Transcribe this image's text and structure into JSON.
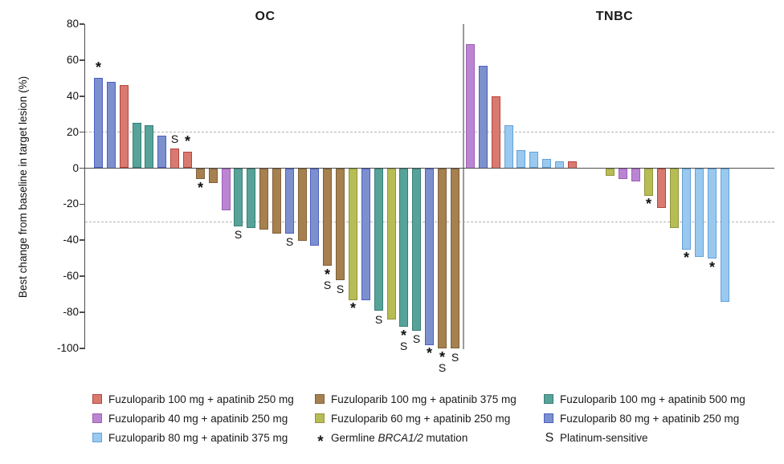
{
  "figure": {
    "ylabel": "Best change from baseline in target lesion (%)"
  },
  "chart_data": {
    "type": "bar",
    "subtype": "waterfall",
    "ylabel": "Best change from baseline in target lesion (%)",
    "ylim": [
      -100,
      80
    ],
    "yticks": [
      80,
      60,
      40,
      20,
      0,
      -20,
      -40,
      -60,
      -80,
      -100
    ],
    "reference_lines": [
      20,
      -30
    ],
    "grid": false,
    "legend_position": "bottom",
    "groups": {
      "fz100_ap250": {
        "label": "Fuzuloparib 100 mg + apatinib 250 mg",
        "fill": "#d97a70",
        "border": "#b5443c"
      },
      "fz100_ap375": {
        "label": "Fuzuloparib 100 mg + apatinib 375 mg",
        "fill": "#a6804e",
        "border": "#7f613a"
      },
      "fz100_ap500": {
        "label": "Fuzuloparib 100 mg + apatinib 500 mg",
        "fill": "#57a39a",
        "border": "#377e75"
      },
      "fz40_ap250": {
        "label": "Fuzuloparib 40 mg + apatinib 250 mg",
        "fill": "#bb85d3",
        "border": "#9c5fb5"
      },
      "fz60_ap250": {
        "label": "Fuzuloparib 60 mg + apatinib 250 mg",
        "fill": "#b8bc55",
        "border": "#8f9639"
      },
      "fz80_ap250": {
        "label": "Fuzuloparib 80 mg + apatinib 250 mg",
        "fill": "#7c90ce",
        "border": "#4d5ec0"
      },
      "fz80_ap375": {
        "label": "Fuzuloparib 80 mg + apatinib 375 mg",
        "fill": "#99c9ef",
        "border": "#64a0d8"
      }
    },
    "symbols": {
      "sym_brca": {
        "glyph": "*",
        "prefix": "Germline ",
        "italic": "BRCA1/2",
        "suffix": " mutation"
      },
      "sym_s": {
        "glyph": "S",
        "label": "Platinum-sensitive"
      }
    },
    "legend_columns": [
      [
        "fz100_ap250",
        "fz40_ap250",
        "fz80_ap375"
      ],
      [
        "fz100_ap375",
        "fz60_ap250",
        "sym_brca"
      ],
      [
        "fz100_ap500",
        "fz80_ap250",
        "sym_s"
      ]
    ],
    "panels": [
      {
        "title": "OC",
        "bars": [
          {
            "value": 50,
            "group": "fz80_ap250",
            "marks": "*"
          },
          {
            "value": 48,
            "group": "fz80_ap250",
            "marks": ""
          },
          {
            "value": 46,
            "group": "fz100_ap250",
            "marks": ""
          },
          {
            "value": 25,
            "group": "fz100_ap500",
            "marks": ""
          },
          {
            "value": 24,
            "group": "fz100_ap500",
            "marks": ""
          },
          {
            "value": 18,
            "group": "fz80_ap250",
            "marks": ""
          },
          {
            "value": 11,
            "group": "fz100_ap250",
            "marks": "S"
          },
          {
            "value": 9,
            "group": "fz100_ap250",
            "marks": "*"
          },
          {
            "value": -6,
            "group": "fz100_ap375",
            "marks": "*"
          },
          {
            "value": -8,
            "group": "fz100_ap375",
            "marks": ""
          },
          {
            "value": -23,
            "group": "fz40_ap250",
            "marks": ""
          },
          {
            "value": -32,
            "group": "fz100_ap500",
            "marks": "S"
          },
          {
            "value": -33,
            "group": "fz100_ap500",
            "marks": ""
          },
          {
            "value": -34,
            "group": "fz100_ap375",
            "marks": ""
          },
          {
            "value": -36,
            "group": "fz100_ap375",
            "marks": ""
          },
          {
            "value": -36,
            "group": "fz80_ap250",
            "marks": "S"
          },
          {
            "value": -40,
            "group": "fz100_ap375",
            "marks": ""
          },
          {
            "value": -43,
            "group": "fz80_ap250",
            "marks": ""
          },
          {
            "value": -54,
            "group": "fz100_ap375",
            "marks": "*S"
          },
          {
            "value": -62,
            "group": "fz100_ap375",
            "marks": "S"
          },
          {
            "value": -73,
            "group": "fz60_ap250",
            "marks": "*"
          },
          {
            "value": -73,
            "group": "fz80_ap250",
            "marks": ""
          },
          {
            "value": -79,
            "group": "fz100_ap500",
            "marks": "S"
          },
          {
            "value": -84,
            "group": "fz60_ap250",
            "marks": ""
          },
          {
            "value": -88,
            "group": "fz100_ap500",
            "marks": "*S"
          },
          {
            "value": -90,
            "group": "fz100_ap500",
            "marks": "S"
          },
          {
            "value": -98,
            "group": "fz80_ap250",
            "marks": "*"
          },
          {
            "value": -100,
            "group": "fz100_ap375",
            "marks": "*S"
          },
          {
            "value": -100,
            "group": "fz100_ap375",
            "marks": "S"
          }
        ]
      },
      {
        "title": "TNBC",
        "bars": [
          {
            "value": 69,
            "group": "fz40_ap250",
            "marks": "",
            "slot": 0
          },
          {
            "value": 57,
            "group": "fz80_ap250",
            "marks": "",
            "slot": 1
          },
          {
            "value": 40,
            "group": "fz100_ap250",
            "marks": "",
            "slot": 2
          },
          {
            "value": 24,
            "group": "fz80_ap375",
            "marks": "",
            "slot": 3
          },
          {
            "value": 10,
            "group": "fz80_ap375",
            "marks": "",
            "slot": 4
          },
          {
            "value": 9,
            "group": "fz80_ap375",
            "marks": "",
            "slot": 5
          },
          {
            "value": 5,
            "group": "fz80_ap375",
            "marks": "",
            "slot": 6
          },
          {
            "value": 4,
            "group": "fz80_ap375",
            "marks": "",
            "slot": 7
          },
          {
            "value": 4,
            "group": "fz100_ap250",
            "marks": "",
            "slot": 8
          },
          {
            "value": -4,
            "group": "fz60_ap250",
            "marks": "",
            "slot": 11
          },
          {
            "value": -6,
            "group": "fz40_ap250",
            "marks": "",
            "slot": 12
          },
          {
            "value": -7,
            "group": "fz40_ap250",
            "marks": "",
            "slot": 13
          },
          {
            "value": -15,
            "group": "fz60_ap250",
            "marks": "*",
            "slot": 14
          },
          {
            "value": -22,
            "group": "fz100_ap250",
            "marks": "",
            "slot": 15
          },
          {
            "value": -33,
            "group": "fz60_ap250",
            "marks": "",
            "slot": 16
          },
          {
            "value": -45,
            "group": "fz80_ap375",
            "marks": "*",
            "slot": 17
          },
          {
            "value": -49,
            "group": "fz80_ap375",
            "marks": "",
            "slot": 18
          },
          {
            "value": -50,
            "group": "fz80_ap375",
            "marks": "*",
            "slot": 19
          },
          {
            "value": -74,
            "group": "fz80_ap375",
            "marks": "",
            "slot": 20
          }
        ]
      }
    ]
  }
}
